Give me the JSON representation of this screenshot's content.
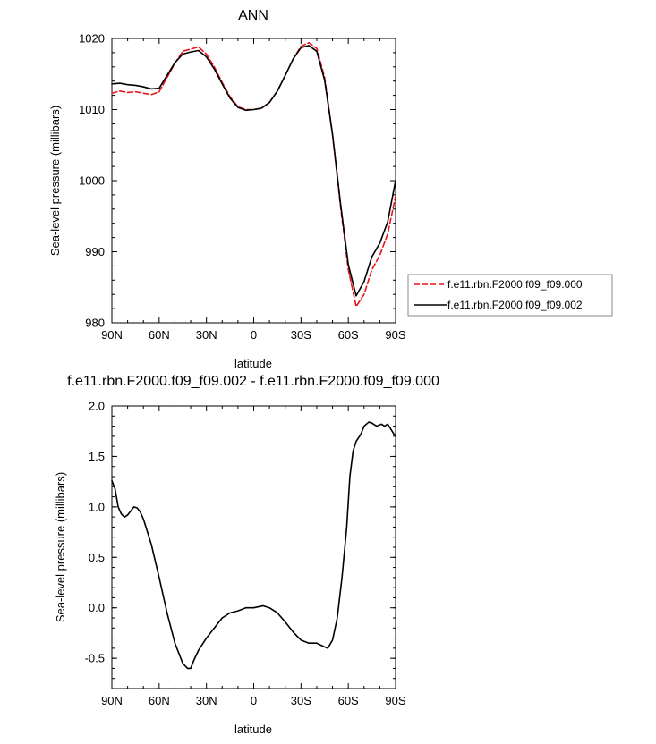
{
  "chart_data": [
    {
      "type": "line",
      "title": "ANN",
      "xlabel": "latitude",
      "ylabel": "Sea-level pressure (millibars)",
      "xlim": [
        90,
        -90
      ],
      "ylim": [
        980,
        1020
      ],
      "x_tick_values": [
        90,
        60,
        30,
        0,
        -30,
        -60,
        -90
      ],
      "x_tick_labels": [
        "90N",
        "60N",
        "30N",
        "0",
        "30S",
        "60S",
        "90S"
      ],
      "y_tick_values": [
        980,
        990,
        1000,
        1010,
        1020
      ],
      "y_tick_labels": [
        "980",
        "990",
        "1000",
        "1010",
        "1020"
      ],
      "legend_position": "right",
      "series": [
        {
          "name": "f.e11.rbn.F2000.f09_f09.000",
          "color": "#e8141b",
          "dash": "dashed",
          "points": [
            [
              90,
              1012.3
            ],
            [
              85,
              1012.6
            ],
            [
              80,
              1012.4
            ],
            [
              75,
              1012.5
            ],
            [
              70,
              1012.3
            ],
            [
              65,
              1012.1
            ],
            [
              60,
              1012.5
            ],
            [
              55,
              1014.5
            ],
            [
              50,
              1016.5
            ],
            [
              45,
              1018.2
            ],
            [
              40,
              1018.5
            ],
            [
              35,
              1018.8
            ],
            [
              30,
              1017.8
            ],
            [
              25,
              1016.0
            ],
            [
              20,
              1013.8
            ],
            [
              15,
              1011.8
            ],
            [
              10,
              1010.4
            ],
            [
              5,
              1010.0
            ],
            [
              0,
              1010.0
            ],
            [
              -5,
              1010.2
            ],
            [
              -10,
              1011.0
            ],
            [
              -15,
              1012.6
            ],
            [
              -20,
              1014.8
            ],
            [
              -25,
              1017.1
            ],
            [
              -30,
              1018.9
            ],
            [
              -35,
              1019.4
            ],
            [
              -40,
              1018.6
            ],
            [
              -45,
              1014.5
            ],
            [
              -50,
              1006.5
            ],
            [
              -55,
              996.5
            ],
            [
              -60,
              987.5
            ],
            [
              -65,
              982.3
            ],
            [
              -70,
              984.0
            ],
            [
              -75,
              987.5
            ],
            [
              -80,
              989.5
            ],
            [
              -85,
              992.5
            ],
            [
              -90,
              997.8
            ]
          ]
        },
        {
          "name": "f.e11.rbn.F2000.f09_f09.002",
          "color": "#000000",
          "dash": "solid",
          "points": [
            [
              90,
              1013.6
            ],
            [
              85,
              1013.7
            ],
            [
              80,
              1013.5
            ],
            [
              75,
              1013.4
            ],
            [
              70,
              1013.2
            ],
            [
              65,
              1012.9
            ],
            [
              60,
              1013.0
            ],
            [
              55,
              1014.8
            ],
            [
              50,
              1016.6
            ],
            [
              45,
              1017.8
            ],
            [
              40,
              1018.1
            ],
            [
              35,
              1018.3
            ],
            [
              30,
              1017.4
            ],
            [
              25,
              1015.7
            ],
            [
              20,
              1013.6
            ],
            [
              15,
              1011.6
            ],
            [
              10,
              1010.3
            ],
            [
              5,
              1009.9
            ],
            [
              0,
              1010.0
            ],
            [
              -5,
              1010.2
            ],
            [
              -10,
              1011.0
            ],
            [
              -15,
              1012.6
            ],
            [
              -20,
              1014.8
            ],
            [
              -25,
              1017.1
            ],
            [
              -30,
              1018.7
            ],
            [
              -35,
              1019.0
            ],
            [
              -40,
              1018.2
            ],
            [
              -45,
              1014.1
            ],
            [
              -50,
              1006.5
            ],
            [
              -55,
              996.9
            ],
            [
              -60,
              988.2
            ],
            [
              -65,
              983.8
            ],
            [
              -70,
              985.8
            ],
            [
              -75,
              989.3
            ],
            [
              -80,
              991.2
            ],
            [
              -85,
              994.2
            ],
            [
              -90,
              1000.0
            ]
          ]
        }
      ]
    },
    {
      "type": "line",
      "title": "f.e11.rbn.F2000.f09_f09.002 - f.e11.rbn.F2000.f09_f09.000",
      "xlabel": "latitude",
      "ylabel": "Sea-level pressure (millibars)",
      "xlim": [
        90,
        -90
      ],
      "ylim": [
        -0.8,
        2.0
      ],
      "x_tick_values": [
        90,
        60,
        30,
        0,
        -30,
        -60,
        -90
      ],
      "x_tick_labels": [
        "90N",
        "60N",
        "30N",
        "0",
        "30S",
        "60S",
        "90S"
      ],
      "y_tick_values": [
        -0.5,
        0.0,
        0.5,
        1.0,
        1.5,
        2.0
      ],
      "y_tick_labels": [
        "-0.5",
        "0.0",
        "0.5",
        "1.0",
        "1.5",
        "2.0"
      ],
      "series": [
        {
          "color": "#000000",
          "dash": "solid",
          "points": [
            [
              90,
              1.26
            ],
            [
              88,
              1.18
            ],
            [
              86,
              1.0
            ],
            [
              84,
              0.93
            ],
            [
              82,
              0.9
            ],
            [
              80,
              0.92
            ],
            [
              78,
              0.96
            ],
            [
              76,
              1.0
            ],
            [
              74,
              0.99
            ],
            [
              72,
              0.95
            ],
            [
              70,
              0.88
            ],
            [
              65,
              0.63
            ],
            [
              60,
              0.3
            ],
            [
              55,
              -0.05
            ],
            [
              50,
              -0.35
            ],
            [
              45,
              -0.55
            ],
            [
              42,
              -0.6
            ],
            [
              40,
              -0.6
            ],
            [
              38,
              -0.52
            ],
            [
              35,
              -0.42
            ],
            [
              30,
              -0.3
            ],
            [
              25,
              -0.2
            ],
            [
              20,
              -0.1
            ],
            [
              15,
              -0.05
            ],
            [
              10,
              -0.03
            ],
            [
              5,
              0.0
            ],
            [
              0,
              0.0
            ],
            [
              -3,
              0.01
            ],
            [
              -6,
              0.02
            ],
            [
              -10,
              0.0
            ],
            [
              -15,
              -0.05
            ],
            [
              -20,
              -0.14
            ],
            [
              -25,
              -0.24
            ],
            [
              -30,
              -0.32
            ],
            [
              -35,
              -0.35
            ],
            [
              -40,
              -0.35
            ],
            [
              -44,
              -0.38
            ],
            [
              -47,
              -0.4
            ],
            [
              -50,
              -0.32
            ],
            [
              -53,
              -0.1
            ],
            [
              -56,
              0.3
            ],
            [
              -59,
              0.8
            ],
            [
              -61,
              1.3
            ],
            [
              -63,
              1.55
            ],
            [
              -65,
              1.65
            ],
            [
              -68,
              1.72
            ],
            [
              -70,
              1.8
            ],
            [
              -73,
              1.84
            ],
            [
              -75,
              1.83
            ],
            [
              -78,
              1.8
            ],
            [
              -81,
              1.82
            ],
            [
              -83,
              1.8
            ],
            [
              -85,
              1.82
            ],
            [
              -87,
              1.77
            ],
            [
              -89,
              1.72
            ],
            [
              -90,
              1.7
            ]
          ]
        }
      ]
    }
  ]
}
